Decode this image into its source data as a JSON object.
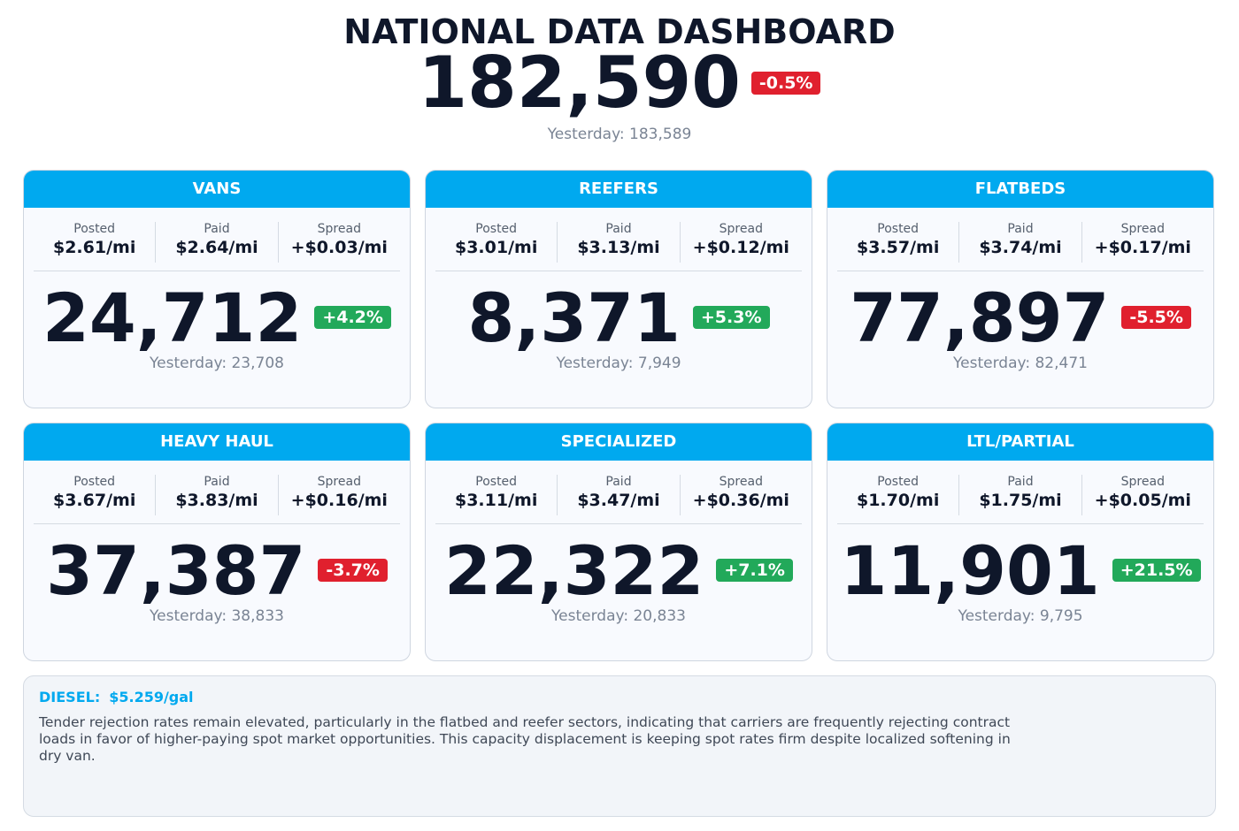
{
  "header": {
    "title": "NATIONAL DATA DASHBOARD",
    "total": "182,590",
    "change": "-0.5%",
    "change_color": "#e0202e",
    "yesterday": "Yesterday: 183,589"
  },
  "cards": [
    {
      "name": "VANS",
      "metrics": [
        {
          "label": "Posted",
          "value": "$2.61/mi"
        },
        {
          "label": "Paid",
          "value": "$2.64/mi"
        },
        {
          "label": "Spread",
          "value": "+$0.03/mi"
        }
      ],
      "count": "24,712",
      "change": "+4.2%",
      "change_color": "#22a95a",
      "yesterday": "Yesterday: 23,708"
    },
    {
      "name": "REEFERS",
      "metrics": [
        {
          "label": "Posted",
          "value": "$3.01/mi"
        },
        {
          "label": "Paid",
          "value": "$3.13/mi"
        },
        {
          "label": "Spread",
          "value": "+$0.12/mi"
        }
      ],
      "count": "8,371",
      "change": "+5.3%",
      "change_color": "#22a95a",
      "yesterday": "Yesterday: 7,949"
    },
    {
      "name": "FLATBEDS",
      "metrics": [
        {
          "label": "Posted",
          "value": "$3.57/mi"
        },
        {
          "label": "Paid",
          "value": "$3.74/mi"
        },
        {
          "label": "Spread",
          "value": "+$0.17/mi"
        }
      ],
      "count": "77,897",
      "change": "-5.5%",
      "change_color": "#e0202e",
      "yesterday": "Yesterday: 82,471"
    },
    {
      "name": "HEAVY HAUL",
      "metrics": [
        {
          "label": "Posted",
          "value": "$3.67/mi"
        },
        {
          "label": "Paid",
          "value": "$3.83/mi"
        },
        {
          "label": "Spread",
          "value": "+$0.16/mi"
        }
      ],
      "count": "37,387",
      "change": "-3.7%",
      "change_color": "#e0202e",
      "yesterday": "Yesterday: 38,833"
    },
    {
      "name": "SPECIALIZED",
      "metrics": [
        {
          "label": "Posted",
          "value": "$3.11/mi"
        },
        {
          "label": "Paid",
          "value": "$3.47/mi"
        },
        {
          "label": "Spread",
          "value": "+$0.36/mi"
        }
      ],
      "count": "22,322",
      "change": "+7.1%",
      "change_color": "#22a95a",
      "yesterday": "Yesterday: 20,833"
    },
    {
      "name": "LTL/PARTIAL",
      "metrics": [
        {
          "label": "Posted",
          "value": "$1.70/mi"
        },
        {
          "label": "Paid",
          "value": "$1.75/mi"
        },
        {
          "label": "Spread",
          "value": "+$0.05/mi"
        }
      ],
      "count": "11,901",
      "change": "+21.5%",
      "change_color": "#22a95a",
      "yesterday": "Yesterday: 9,795"
    }
  ],
  "footer": {
    "diesel_label": "DIESEL:",
    "diesel": "$5.259/gal",
    "note": "Tender rejection rates remain elevated, particularly in the flatbed and reefer sectors, indicating that carriers are frequently rejecting contract loads in favor of higher-paying spot market opportunities. This capacity displacement is keeping spot rates firm despite localized softening in dry van."
  }
}
